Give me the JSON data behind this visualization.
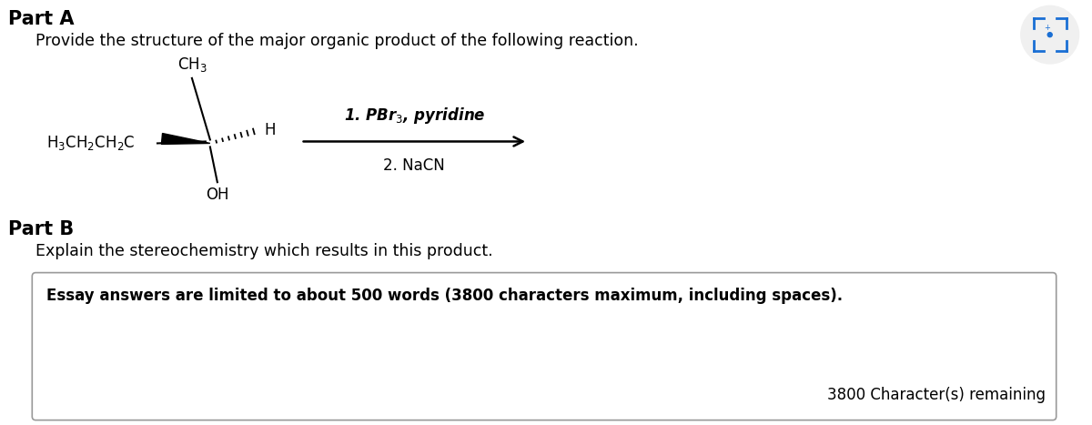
{
  "background_color": "#ffffff",
  "part_a_label": "Part A",
  "part_a_instruction": "Provide the structure of the major organic product of the following reaction.",
  "part_b_label": "Part B",
  "part_b_instruction": "Explain the stereochemistry which results in this product.",
  "essay_box_text": "Essay answers are limited to about 500 words (3800 characters maximum, including spaces).",
  "char_remaining": "3800 Character(s) remaining",
  "reagent_line2": "2. NaCN",
  "icon_color": "#1a6fd4",
  "box_border_color": "#999999",
  "text_color": "#000000",
  "figure_width": 12.0,
  "figure_height": 4.67
}
